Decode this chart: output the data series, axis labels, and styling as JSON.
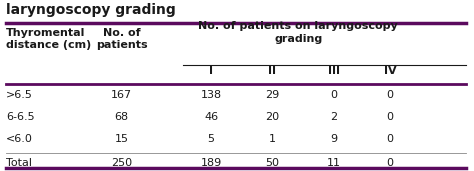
{
  "title": "laryngoscopy grading",
  "rows": [
    [
      ">6.5",
      "167",
      "138",
      "29",
      "0",
      "0"
    ],
    [
      "6-6.5",
      "68",
      "46",
      "20",
      "2",
      "0"
    ],
    [
      "<6.0",
      "15",
      "5",
      "1",
      "9",
      "0"
    ],
    [
      "Total",
      "250",
      "189",
      "50",
      "11",
      "0"
    ]
  ],
  "border_color": "#5b0a5e",
  "text_color": "#1a1a1a",
  "font_size": 8.0,
  "title_font_size": 10.0
}
